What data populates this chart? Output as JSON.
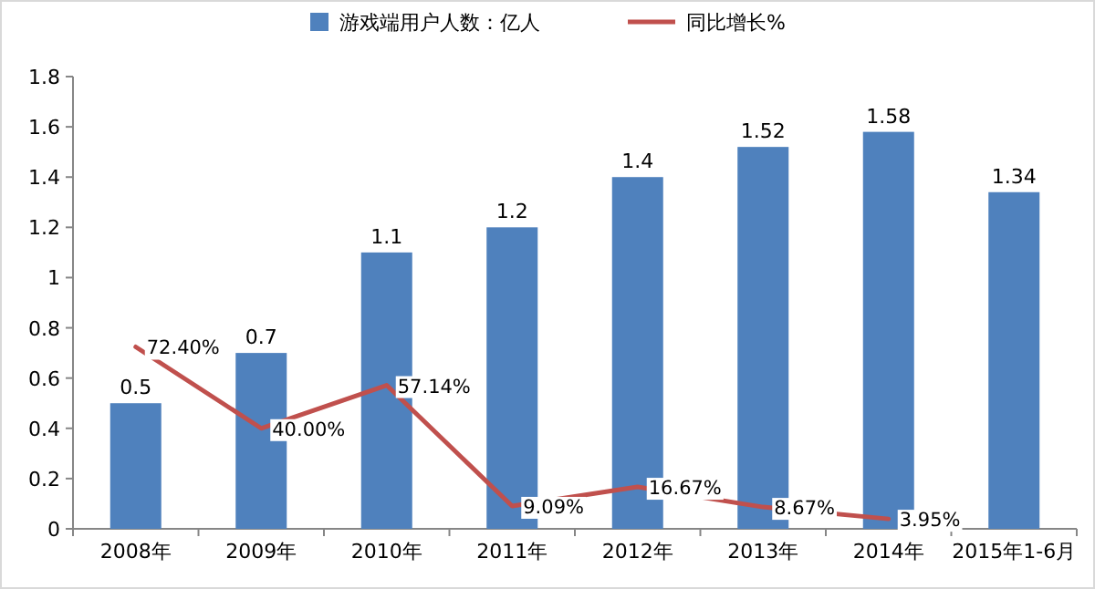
{
  "chart_data": {
    "type": "bar",
    "categories": [
      "2008年",
      "2009年",
      "2010年",
      "2011年",
      "2012年",
      "2013年",
      "2014年",
      "2015年1-6月"
    ],
    "series": [
      {
        "name": "游戏端用户人数：亿人",
        "color": "#4f81bd",
        "values": [
          0.5,
          0.7,
          1.1,
          1.2,
          1.4,
          1.52,
          1.58,
          1.34
        ],
        "value_labels": [
          "0.5",
          "0.7",
          "1.1",
          "1.2",
          "1.4",
          "1.52",
          "1.58",
          "1.34"
        ]
      },
      {
        "name": "同比增长%",
        "type": "line",
        "color": "#c0504d",
        "values": [
          0.724,
          0.4,
          0.5714,
          0.0909,
          0.1667,
          0.0867,
          0.0395,
          null
        ],
        "value_labels": [
          "72.40%",
          "40.00%",
          "57.14%",
          "9.09%",
          "16.67%",
          "8.67%",
          "3.95%",
          null
        ]
      }
    ],
    "ylim": [
      0,
      1.8
    ],
    "yticks": [
      0,
      0.2,
      0.4,
      0.6,
      0.8,
      1,
      1.2,
      1.4,
      1.6,
      1.8
    ],
    "legend": "top",
    "grid": false
  }
}
